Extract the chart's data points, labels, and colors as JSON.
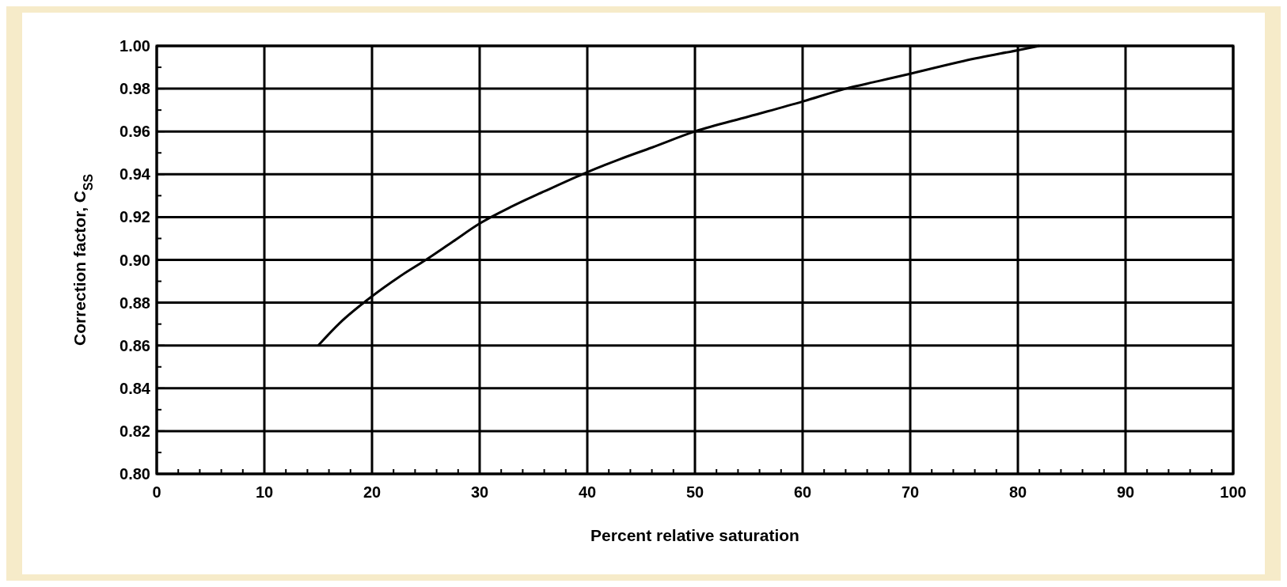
{
  "chart_data": {
    "type": "line",
    "xlabel": "Percent relative saturation",
    "ylabel": "Correction factor, C$_{SS}$",
    "x": [
      15,
      17,
      20,
      22.5,
      25,
      27.5,
      30,
      33,
      36,
      40,
      43,
      46,
      50,
      55,
      60,
      64,
      67,
      70,
      75,
      80,
      82
    ],
    "series": [
      {
        "color": "#000000",
        "values": [
          0.86,
          0.8705,
          0.883,
          0.892,
          0.9,
          0.9085,
          0.917,
          0.925,
          0.932,
          0.941,
          0.947,
          0.9525,
          0.96,
          0.967,
          0.974,
          0.98,
          0.9835,
          0.987,
          0.993,
          0.998,
          1.0
        ]
      }
    ],
    "xlim": [
      0,
      100
    ],
    "xticks": [
      0,
      {
        "value": 2,
        "label": null
      },
      {
        "value": 4,
        "label": null
      },
      {
        "value": 6,
        "label": null
      },
      {
        "value": 8,
        "label": null
      },
      10,
      {
        "value": 12,
        "label": null
      },
      {
        "value": 14,
        "label": null
      },
      {
        "value": 16,
        "label": null
      },
      {
        "value": 18,
        "label": null
      },
      20,
      {
        "value": 22,
        "label": null
      },
      {
        "value": 24,
        "label": null
      },
      {
        "value": 26,
        "label": null
      },
      {
        "value": 28,
        "label": null
      },
      30,
      {
        "value": 32,
        "label": null
      },
      {
        "value": 34,
        "label": null
      },
      {
        "value": 36,
        "label": null
      },
      {
        "value": 38,
        "label": null
      },
      40,
      {
        "value": 42,
        "label": null
      },
      {
        "value": 44,
        "label": null
      },
      {
        "value": 46,
        "label": null
      },
      {
        "value": 48,
        "label": null
      },
      50,
      {
        "value": 52,
        "label": null
      },
      {
        "value": 54,
        "label": null
      },
      {
        "value": 56,
        "label": null
      },
      {
        "value": 58,
        "label": null
      },
      60,
      {
        "value": 62,
        "label": null
      },
      {
        "value": 64,
        "label": null
      },
      {
        "value": 66,
        "label": null
      },
      {
        "value": 68,
        "label": null
      },
      70,
      {
        "value": 72,
        "label": null
      },
      {
        "value": 74,
        "label": null
      },
      {
        "value": 76,
        "label": null
      },
      {
        "value": 78,
        "label": null
      },
      80,
      {
        "value": 82,
        "label": null
      },
      {
        "value": 84,
        "label": null
      },
      {
        "value": 86,
        "label": null
      },
      {
        "value": 88,
        "label": null
      },
      90,
      {
        "value": 92,
        "label": null
      },
      {
        "value": 94,
        "label": null
      },
      {
        "value": 96,
        "label": null
      },
      {
        "value": 98,
        "label": null
      },
      100
    ],
    "ylim": [
      0.8,
      1.0
    ],
    "yticks": [
      {
        "value": 0.8,
        "label": "0.80"
      },
      {
        "value": 0.81,
        "label": null
      },
      {
        "value": 0.82,
        "label": "0.82"
      },
      {
        "value": 0.83,
        "label": null
      },
      {
        "value": 0.84,
        "label": "0.84"
      },
      {
        "value": 0.85,
        "label": null
      },
      {
        "value": 0.86,
        "label": "0.86"
      },
      {
        "value": 0.87,
        "label": null
      },
      {
        "value": 0.88,
        "label": "0.88"
      },
      {
        "value": 0.89,
        "label": null
      },
      {
        "value": 0.9,
        "label": "0.90"
      },
      {
        "value": 0.91,
        "label": null
      },
      {
        "value": 0.92,
        "label": "0.92"
      },
      {
        "value": 0.93,
        "label": null
      },
      {
        "value": 0.94,
        "label": "0.94"
      },
      {
        "value": 0.95,
        "label": null
      },
      {
        "value": 0.96,
        "label": "0.96"
      },
      {
        "value": 0.97,
        "label": null
      },
      {
        "value": 0.98,
        "label": "0.98"
      },
      {
        "value": 0.99,
        "label": null
      },
      {
        "value": 1.0,
        "label": "1.00"
      }
    ],
    "grid": true,
    "marker": "none",
    "line_style": "solid"
  }
}
